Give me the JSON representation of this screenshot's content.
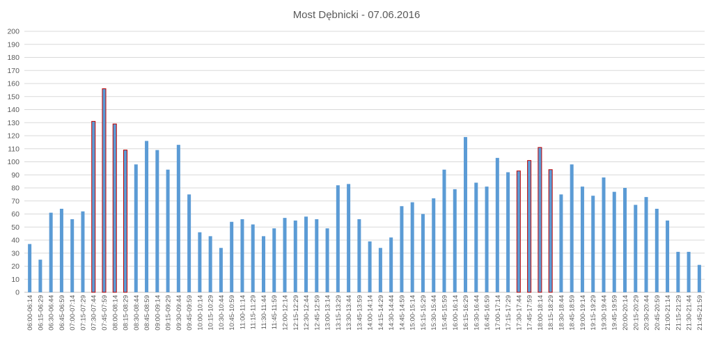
{
  "chart_data": {
    "type": "bar",
    "title": "Most Dębnicki - 07.06.2016",
    "xlabel": "",
    "ylabel": "",
    "ylim": [
      0,
      200
    ],
    "yticks": [
      0,
      10,
      20,
      30,
      40,
      50,
      60,
      70,
      80,
      90,
      100,
      110,
      120,
      130,
      140,
      150,
      160,
      170,
      180,
      190,
      200
    ],
    "grid": true,
    "legend": "none",
    "colors": {
      "bar": "#5b9bd5",
      "highlight_outline": "#c00000",
      "grid": "#d9d9d9"
    },
    "categories": [
      "06:00-06:14",
      "06:15-06:29",
      "06:30-06:44",
      "06:45-06:59",
      "07:00-07:14",
      "07:15-07:29",
      "07:30-07:44",
      "07:45-07:59",
      "08:00-08:14",
      "08:15-08:29",
      "08:30-08:44",
      "08:45-08:59",
      "09:00-09:14",
      "09:15-09:29",
      "09:30-09:44",
      "09:45-09:59",
      "10:00-10:14",
      "10:15-10:29",
      "10:30-10:44",
      "10:45-10:59",
      "11:00-11:14",
      "11:15-11:29",
      "11:30-11:44",
      "11:45-11:59",
      "12:00-12:14",
      "12:15-12:29",
      "12:30-12:44",
      "12:45-12:59",
      "13:00-13:14",
      "13:15-13:29",
      "13:30-13:44",
      "13:45-13:59",
      "14:00-14:14",
      "14:15-14:29",
      "14:30-14:44",
      "14:45-14:59",
      "15:00-15:14",
      "15:15-15:29",
      "15:30-15:44",
      "15:45-15:59",
      "16:00-16:14",
      "16:15-16:29",
      "16:30-16:44",
      "16:45-16:59",
      "17:00-17:14",
      "17:15-17:29",
      "17:30-17:44",
      "17:45-17:59",
      "18:00-18:14",
      "18:15-18:29",
      "18:30-18:44",
      "18:45-18:59",
      "19:00-19:14",
      "19:15-19:29",
      "19:30-19:44",
      "19:45-19:59",
      "20:00-20:14",
      "20:15-20:29",
      "20:30-20:44",
      "20:45-20:59",
      "21:00-21:14",
      "21:15-21:29",
      "21:30-21:44",
      "21:45-21:59"
    ],
    "values": [
      37,
      25,
      61,
      64,
      56,
      62,
      131,
      156,
      129,
      109,
      98,
      116,
      109,
      94,
      113,
      75,
      46,
      43,
      34,
      54,
      56,
      52,
      43,
      49,
      57,
      55,
      58,
      56,
      49,
      82,
      83,
      56,
      39,
      34,
      42,
      66,
      69,
      60,
      72,
      94,
      79,
      119,
      84,
      81,
      103,
      92,
      93,
      101,
      111,
      94,
      75,
      98,
      81,
      74,
      88,
      77,
      80,
      67,
      73,
      64,
      55,
      31,
      31,
      21
    ],
    "highlighted_categories": [
      "07:30-07:44",
      "07:45-07:59",
      "08:00-08:14",
      "08:15-08:29",
      "17:30-17:44",
      "17:45-17:59",
      "18:00-18:14",
      "18:15-18:29"
    ]
  }
}
